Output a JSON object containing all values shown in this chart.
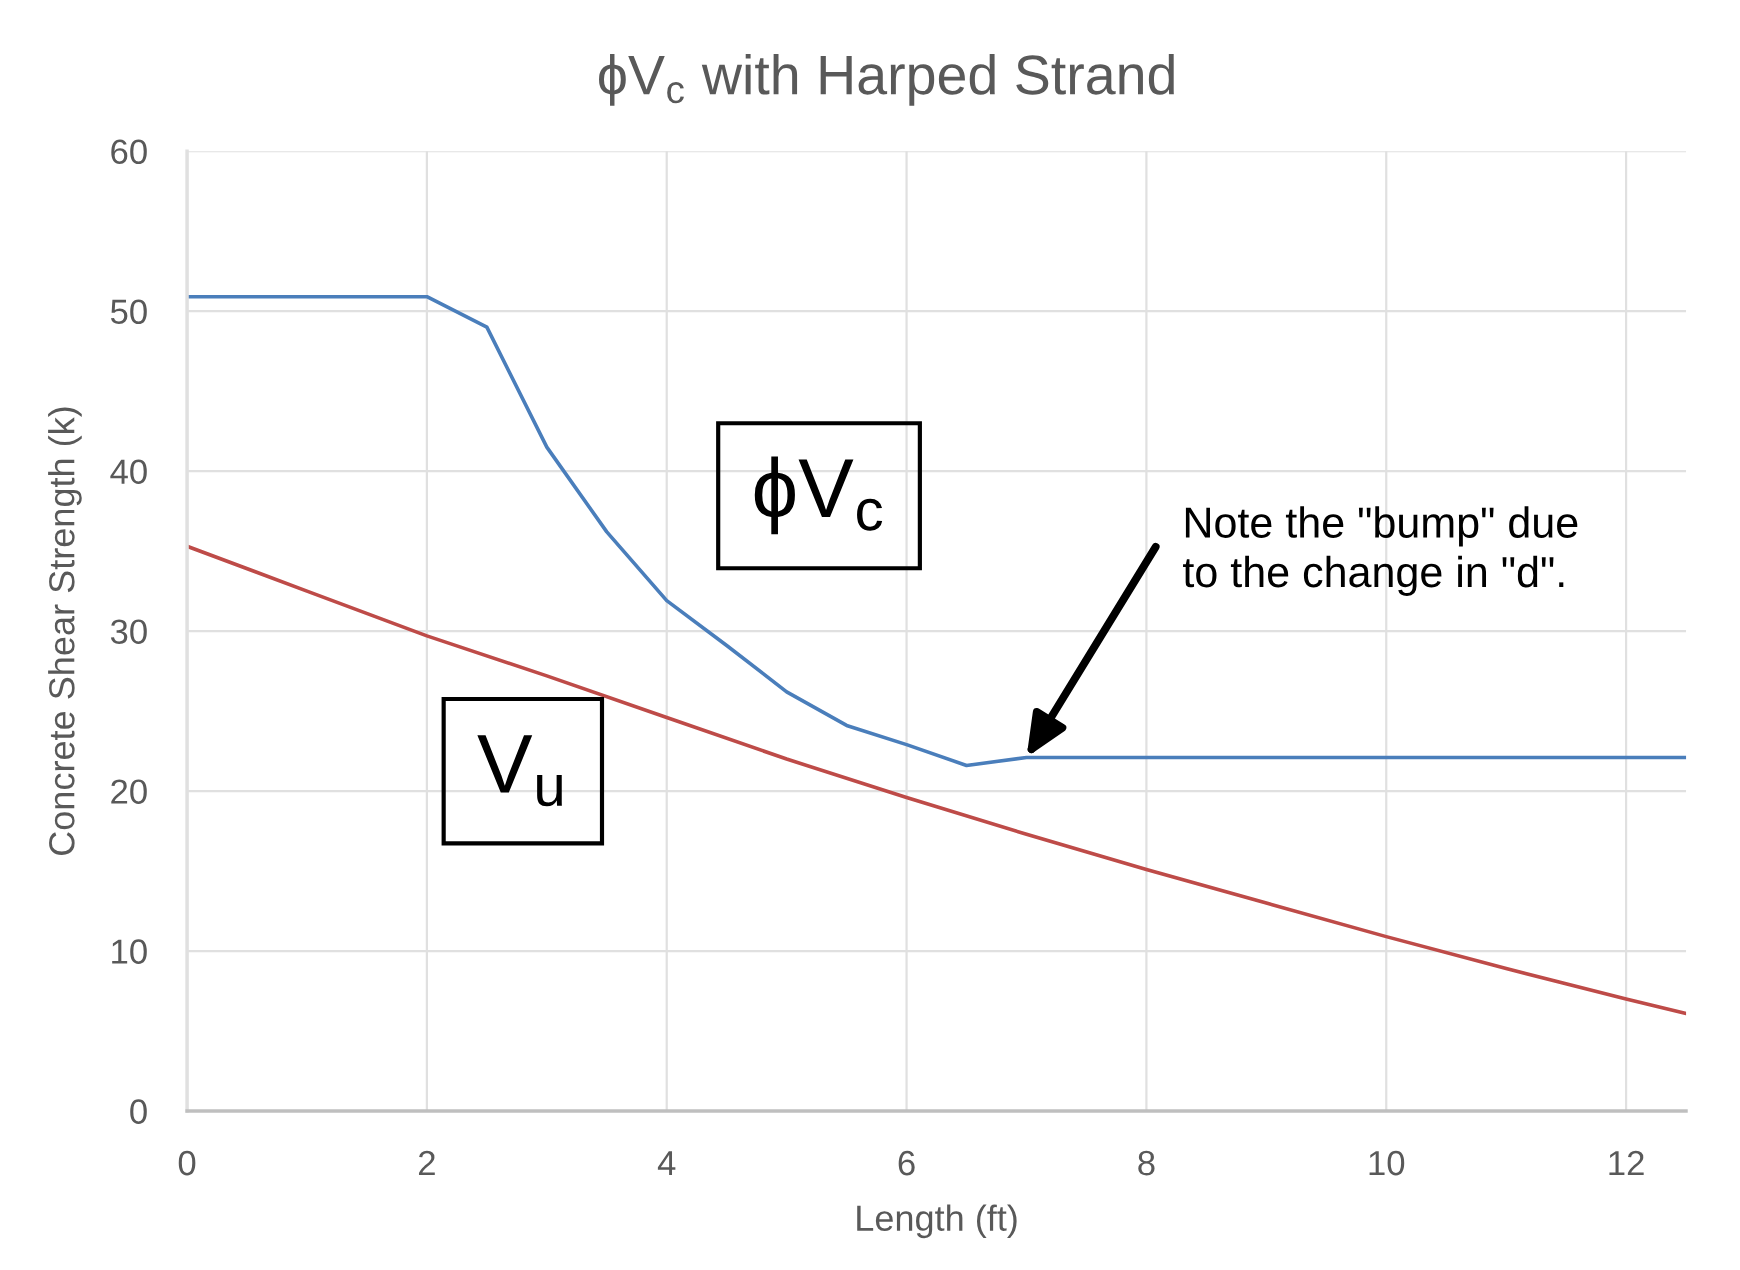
{
  "chart_data": {
    "type": "line",
    "title": "ϕV$_{c}$ with Harped Strand",
    "xlabel": "Length (ft)",
    "ylabel": "Concrete Shear Strength (k)",
    "xlim": [
      0,
      12.5
    ],
    "xticks": [
      0,
      2,
      4,
      6,
      8,
      10,
      12
    ],
    "ylim": [
      0,
      60
    ],
    "yticks": [
      0,
      10,
      20,
      30,
      40,
      50,
      60
    ],
    "grid": true,
    "marker": "none",
    "line_style": "solid",
    "series": [
      {
        "name": "ϕV$_{c}$",
        "color": "#4a7ebb",
        "x": [
          0,
          2,
          2.5,
          3,
          3.5,
          4,
          4.5,
          5,
          5.5,
          6,
          6.5,
          7,
          7.5,
          12.5
        ],
        "values": [
          50.9,
          50.9,
          49.0,
          41.5,
          36.2,
          31.9,
          29.1,
          26.2,
          24.1,
          22.9,
          21.6,
          22.1,
          22.1,
          22.1
        ]
      },
      {
        "name": "V$_{u}$",
        "color": "#be4b48",
        "x": [
          0,
          1,
          2,
          2.2,
          3,
          4,
          5,
          6,
          7,
          8,
          9,
          10,
          11,
          12,
          12.5
        ],
        "values": [
          35.3,
          32.5,
          29.7,
          29.2,
          27.2,
          24.6,
          22.0,
          19.6,
          17.3,
          15.1,
          13.0,
          10.9,
          8.9,
          7.0,
          6.1
        ]
      }
    ],
    "annotations": [
      {
        "text": "Note the \"bump\" due\nto the change in \"d\".",
        "x": 7,
        "y": 22.1
      }
    ]
  }
}
